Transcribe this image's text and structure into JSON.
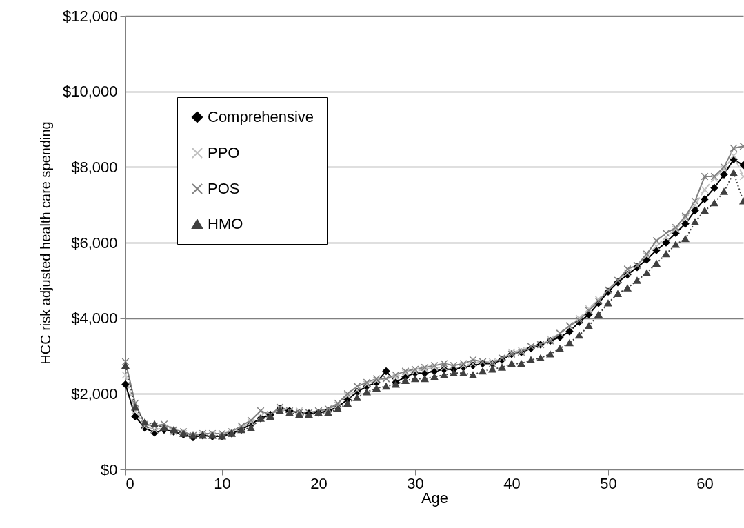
{
  "chart_data": {
    "type": "line",
    "xlabel": "Age",
    "ylabel": "HCC risk adjusted health care spending",
    "x": [
      0,
      1,
      2,
      3,
      4,
      5,
      6,
      7,
      8,
      9,
      10,
      11,
      12,
      13,
      14,
      15,
      16,
      17,
      18,
      19,
      20,
      21,
      22,
      23,
      24,
      25,
      26,
      27,
      28,
      29,
      30,
      31,
      32,
      33,
      34,
      35,
      36,
      37,
      38,
      39,
      40,
      41,
      42,
      43,
      44,
      45,
      46,
      47,
      48,
      49,
      50,
      51,
      52,
      53,
      54,
      55,
      56,
      57,
      58,
      59,
      60,
      61,
      62,
      63,
      64
    ],
    "xlim": [
      0,
      64
    ],
    "xticks": [
      0,
      10,
      20,
      30,
      40,
      50,
      60
    ],
    "ylim": [
      0,
      12000
    ],
    "yticks": [
      {
        "value": 0,
        "label": "$0"
      },
      {
        "value": 2000,
        "label": "$2,000"
      },
      {
        "value": 4000,
        "label": "$4,000"
      },
      {
        "value": 6000,
        "label": "$6,000"
      },
      {
        "value": 8000,
        "label": "$8,000"
      },
      {
        "value": 10000,
        "label": "$10,000"
      },
      {
        "value": 12000,
        "label": "$12,000"
      }
    ],
    "grid": "y",
    "legend": "top left",
    "series": [
      {
        "name": "Comprehensive",
        "color": "#000000",
        "marker": "diamond",
        "line_style": "solid",
        "values": [
          2250,
          1400,
          1100,
          970,
          1050,
          1000,
          920,
          850,
          900,
          870,
          880,
          950,
          1050,
          1200,
          1350,
          1450,
          1600,
          1550,
          1500,
          1480,
          1500,
          1550,
          1650,
          1850,
          2050,
          2200,
          2300,
          2600,
          2300,
          2450,
          2550,
          2550,
          2600,
          2650,
          2650,
          2700,
          2750,
          2800,
          2800,
          2900,
          3050,
          3100,
          3200,
          3300,
          3400,
          3500,
          3650,
          3900,
          4100,
          4400,
          4700,
          4950,
          5150,
          5350,
          5550,
          5800,
          6000,
          6250,
          6500,
          6850,
          7150,
          7450,
          7800,
          8200,
          8050
        ]
      },
      {
        "name": "PPO",
        "color": "#c0c0c0",
        "marker": "cross",
        "line_style": "dashed",
        "values": [
          2500,
          1550,
          1150,
          1050,
          1100,
          1000,
          950,
          900,
          900,
          900,
          900,
          950,
          1100,
          1250,
          1400,
          1450,
          1600,
          1550,
          1550,
          1500,
          1550,
          1600,
          1700,
          1950,
          2100,
          2250,
          2350,
          2400,
          2450,
          2550,
          2600,
          2650,
          2700,
          2700,
          2750,
          2750,
          2800,
          2850,
          2850,
          2950,
          3100,
          3150,
          3250,
          3300,
          3450,
          3600,
          3800,
          4000,
          4250,
          4500,
          4750,
          5000,
          5200,
          5400,
          5650,
          5900,
          6150,
          6350,
          6650,
          7000,
          7400,
          7700,
          7950,
          8300,
          7750
        ]
      },
      {
        "name": "POS",
        "color": "#808080",
        "marker": "cross",
        "line_style": "solid",
        "values": [
          2850,
          1750,
          1200,
          1150,
          1200,
          1050,
          1000,
          900,
          950,
          950,
          950,
          1000,
          1150,
          1300,
          1550,
          1450,
          1650,
          1550,
          1500,
          1500,
          1550,
          1600,
          1750,
          2000,
          2200,
          2300,
          2400,
          2400,
          2500,
          2600,
          2650,
          2700,
          2750,
          2800,
          2750,
          2800,
          2900,
          2850,
          2800,
          2950,
          3050,
          3100,
          3250,
          3300,
          3400,
          3600,
          3800,
          3950,
          4200,
          4450,
          4750,
          5000,
          5300,
          5400,
          5700,
          6050,
          6250,
          6400,
          6700,
          7100,
          7750,
          7750,
          8000,
          8500,
          8550
        ]
      },
      {
        "name": "HMO",
        "color": "#404040",
        "marker": "triangle",
        "line_style": "dotted",
        "values": [
          2750,
          1650,
          1250,
          1200,
          1100,
          1050,
          950,
          900,
          900,
          900,
          880,
          950,
          1050,
          1100,
          1350,
          1400,
          1550,
          1500,
          1450,
          1450,
          1500,
          1500,
          1600,
          1750,
          1900,
          2050,
          2150,
          2200,
          2250,
          2350,
          2400,
          2400,
          2450,
          2500,
          2550,
          2550,
          2500,
          2600,
          2650,
          2700,
          2800,
          2800,
          2900,
          2950,
          3050,
          3200,
          3350,
          3550,
          3800,
          4100,
          4400,
          4650,
          4800,
          5000,
          5200,
          5450,
          5700,
          5950,
          6100,
          6550,
          6850,
          7050,
          7350,
          7850,
          7100
        ]
      }
    ]
  }
}
